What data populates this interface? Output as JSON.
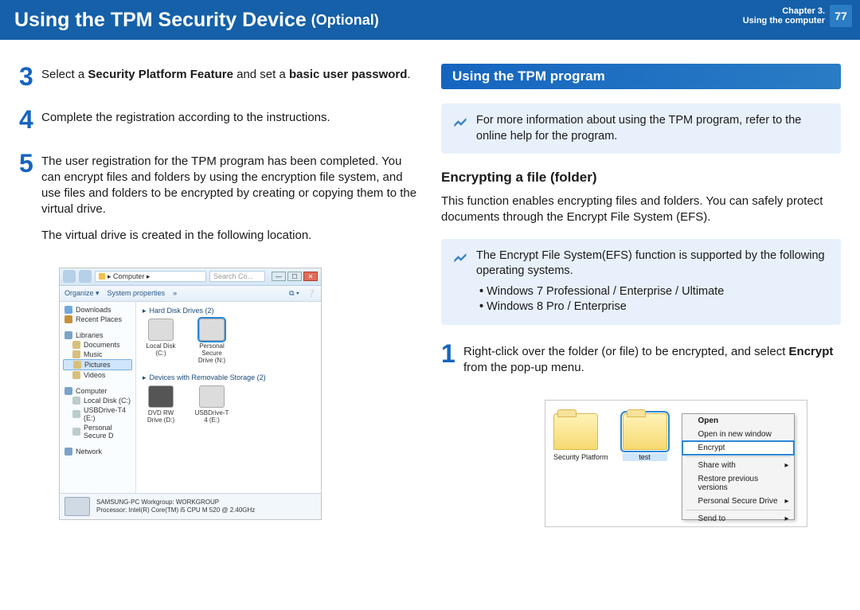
{
  "header": {
    "title_main": "Using the TPM Security Device",
    "title_sub": "(Optional)",
    "chapter_line1": "Chapter 3.",
    "chapter_line2": "Using the computer",
    "page_number": "77"
  },
  "left": {
    "step3": {
      "num": "3",
      "text": "Select a <b>Security Platform Feature</b> and set a <b>basic user password</b>."
    },
    "step4": {
      "num": "4",
      "text": "Complete the registration according to the instructions."
    },
    "step5": {
      "num": "5",
      "para1": "The user registration for the TPM program has been completed. You can encrypt files and folders by using the encryption file system, and use files and folders to be encrypted by creating or copying them to the virtual drive.",
      "para2": "The virtual drive is created in the following location."
    }
  },
  "right": {
    "section_title": "Using the TPM program",
    "note1": "For more information about using the TPM program, refer to the online help for the program.",
    "subheading": "Encrypting a file (folder)",
    "para": "This function enables encrypting files and folders. You can safely protect documents through the Encrypt File System (EFS).",
    "note2": {
      "intro": "The Encrypt File System(EFS) function is supported by the following operating systems.",
      "bullets": [
        "Windows 7 Professional / Enterprise / Ultimate",
        "Windows 8 Pro / Enterprise"
      ]
    },
    "step1": {
      "num": "1",
      "text": "Right-click over the folder (or file) to be encrypted, and select <b>Encrypt</b> from the pop-up menu."
    }
  },
  "explorer": {
    "address": "▸ Computer ▸",
    "search_placeholder": "Search Co...",
    "toolbar": {
      "organize": "Organize ▾",
      "sysprops": "System properties",
      "more": "»"
    },
    "sidebar": {
      "downloads": "Downloads",
      "recent": "Recent Places",
      "libraries": "Libraries",
      "documents": "Documents",
      "music": "Music",
      "pictures": "Pictures",
      "videos": "Videos",
      "computer": "Computer",
      "localdisk": "Local Disk (C:)",
      "usb": "USBDrive-T4 (E:)",
      "psd": "Personal Secure D",
      "network": "Network"
    },
    "sections": {
      "hdd": "Hard Disk Drives (2)",
      "removable": "Devices with Removable Storage (2)"
    },
    "drives": {
      "local": "Local Disk (C:)",
      "psd": "Personal Secure Drive (N:)",
      "dvd": "DVD RW Drive (D:)",
      "usb": "USBDrive-T 4 (E:)"
    },
    "status": {
      "line1": "SAMSUNG-PC  Workgroup:  WORKGROUP",
      "line2": "Processor:  Intel(R) Core(TM) i5 CPU       M 520  @ 2.40GHz"
    }
  },
  "ctx": {
    "folder1": "Security Platform",
    "folder2": "test",
    "menu": {
      "open": "Open",
      "new_window": "Open in new window",
      "encrypt": "Encrypt",
      "share": "Share with",
      "restore": "Restore previous versions",
      "psd": "Personal Secure Drive",
      "sendto": "Send to"
    }
  },
  "colors": {
    "header_bg": "#1560a8",
    "accent": "#1565c0",
    "note_bg": "#e8f1fb"
  }
}
